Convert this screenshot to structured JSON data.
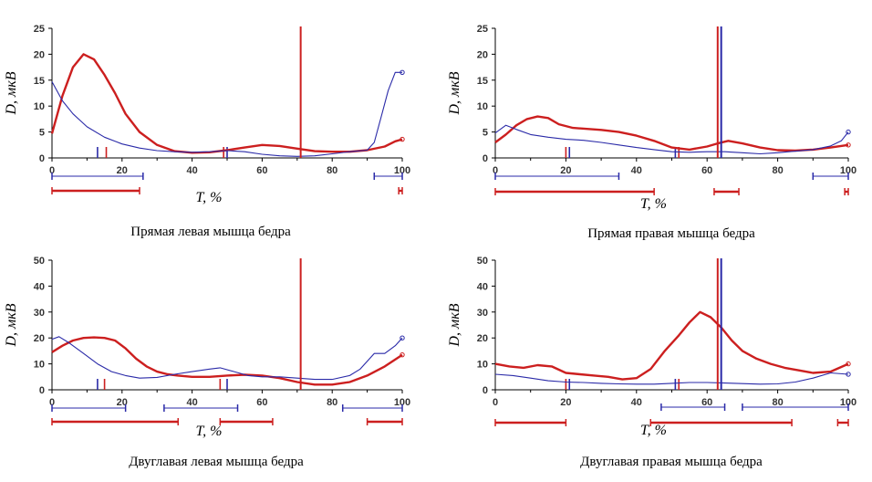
{
  "colors": {
    "series_red": "#cc1f1f",
    "series_blue": "#2a2aa8",
    "axis": "#000000"
  },
  "chart_data": [
    {
      "type": "line",
      "title": "Прямая левая мышца бедра",
      "xlabel": "T, %",
      "ylabel": "D, мкВ",
      "xlim": [
        0,
        100
      ],
      "ylim": [
        0,
        25
      ],
      "xticks": [
        "0",
        "20",
        "40",
        "60",
        "80",
        "100"
      ],
      "yticks": [
        "0",
        "5",
        "10",
        "15",
        "20",
        "25"
      ],
      "series": [
        {
          "color": "red",
          "x": [
            0,
            3,
            6,
            9,
            12,
            15,
            18,
            21,
            25,
            30,
            35,
            40,
            45,
            50,
            55,
            60,
            65,
            70,
            75,
            80,
            85,
            90,
            95,
            98,
            100
          ],
          "y": [
            4.7,
            12,
            17.5,
            20,
            19,
            16,
            12.5,
            8.5,
            5,
            2.5,
            1.3,
            1,
            1.1,
            1.5,
            2,
            2.5,
            2.3,
            1.8,
            1.3,
            1.2,
            1.2,
            1.5,
            2.2,
            3.2,
            3.6
          ]
        },
        {
          "color": "blue",
          "x": [
            0,
            3,
            6,
            10,
            15,
            20,
            25,
            30,
            35,
            40,
            45,
            50,
            55,
            60,
            65,
            70,
            75,
            80,
            85,
            90,
            92,
            94,
            96,
            98,
            100
          ],
          "y": [
            14.7,
            11,
            8.5,
            6,
            4,
            2.7,
            1.9,
            1.4,
            1.2,
            1.1,
            1.2,
            1.4,
            1.2,
            0.7,
            0.4,
            0.3,
            0.4,
            0.8,
            1.2,
            1.5,
            3,
            8,
            13,
            16.5,
            16.5
          ]
        }
      ],
      "vlines": [
        {
          "x": 71,
          "color": "red"
        }
      ],
      "small_markers": [
        {
          "x": 13,
          "color": "blue"
        },
        {
          "x": 15.5,
          "color": "red"
        },
        {
          "x": 49,
          "color": "red"
        },
        {
          "x": 50,
          "color": "blue"
        }
      ],
      "bars_blue": [
        [
          0,
          26
        ],
        [
          92,
          100
        ]
      ],
      "bars_red": [
        [
          0,
          25
        ],
        [
          99,
          100
        ]
      ]
    },
    {
      "type": "line",
      "title": "Прямая правая мышца бедра",
      "xlabel": "T, %",
      "ylabel": "D, мкВ",
      "xlim": [
        0,
        100
      ],
      "ylim": [
        0,
        25
      ],
      "xticks": [
        "0",
        "20",
        "40",
        "60",
        "80",
        "100"
      ],
      "yticks": [
        "0",
        "5",
        "10",
        "15",
        "20",
        "25"
      ],
      "series": [
        {
          "color": "red",
          "x": [
            0,
            3,
            6,
            9,
            12,
            15,
            18,
            22,
            26,
            30,
            35,
            40,
            45,
            50,
            55,
            60,
            63,
            66,
            70,
            75,
            80,
            85,
            90,
            95,
            100
          ],
          "y": [
            3,
            4.5,
            6.3,
            7.5,
            8,
            7.7,
            6.5,
            5.8,
            5.6,
            5.4,
            5,
            4.3,
            3.3,
            2,
            1.6,
            2.2,
            2.8,
            3.3,
            2.8,
            2,
            1.5,
            1.4,
            1.6,
            2,
            2.5
          ]
        },
        {
          "color": "blue",
          "x": [
            0,
            3,
            6,
            10,
            15,
            20,
            25,
            30,
            35,
            40,
            45,
            50,
            55,
            60,
            65,
            70,
            75,
            80,
            85,
            90,
            95,
            98,
            100
          ],
          "y": [
            4.8,
            6.3,
            5.5,
            4.5,
            4,
            3.6,
            3.4,
            3,
            2.5,
            2,
            1.6,
            1.2,
            1.1,
            1.2,
            1.2,
            1,
            0.8,
            1,
            1.3,
            1.6,
            2.3,
            3.3,
            5
          ]
        }
      ],
      "vlines": [
        {
          "x": 63,
          "color": "red"
        },
        {
          "x": 64,
          "color": "blue"
        }
      ],
      "small_markers": [
        {
          "x": 20,
          "color": "red"
        },
        {
          "x": 21,
          "color": "blue"
        },
        {
          "x": 51,
          "color": "blue"
        },
        {
          "x": 52,
          "color": "red"
        }
      ],
      "bars_blue": [
        [
          0,
          35
        ],
        [
          90,
          100
        ]
      ],
      "bars_red": [
        [
          0,
          45
        ],
        [
          62,
          69
        ],
        [
          99,
          100
        ]
      ]
    },
    {
      "type": "line",
      "title": "Двуглавая левая мышца бедра",
      "xlabel": "T, %",
      "ylabel": "D, мкВ",
      "xlim": [
        0,
        100
      ],
      "ylim": [
        0,
        50
      ],
      "xticks": [
        "0",
        "20",
        "40",
        "60",
        "80",
        "100"
      ],
      "yticks": [
        "0",
        "10",
        "20",
        "30",
        "40",
        "50"
      ],
      "series": [
        {
          "color": "red",
          "x": [
            0,
            3,
            6,
            9,
            12,
            15,
            18,
            21,
            24,
            27,
            30,
            33,
            36,
            40,
            45,
            50,
            55,
            60,
            65,
            70,
            75,
            80,
            85,
            90,
            95,
            100
          ],
          "y": [
            14.5,
            17,
            19,
            20,
            20.2,
            20,
            19,
            16,
            12,
            9,
            7,
            6,
            5.5,
            5,
            5,
            5.5,
            5.8,
            5.5,
            4.5,
            3,
            2,
            2,
            3,
            5.5,
            9,
            13.5
          ]
        },
        {
          "color": "blue",
          "x": [
            0,
            2,
            5,
            9,
            13,
            17,
            21,
            25,
            30,
            35,
            40,
            45,
            48,
            52,
            56,
            60,
            65,
            70,
            75,
            80,
            85,
            88,
            92,
            95,
            98,
            100
          ],
          "y": [
            19.5,
            20.5,
            18,
            14,
            10,
            7,
            5.5,
            4.5,
            4.8,
            6,
            7,
            8,
            8.5,
            7,
            5.5,
            5,
            5,
            4.5,
            4,
            4,
            5.5,
            8,
            14,
            14,
            17,
            20
          ]
        }
      ],
      "vlines": [
        {
          "x": 71,
          "color": "red"
        }
      ],
      "small_markers": [
        {
          "x": 13,
          "color": "blue"
        },
        {
          "x": 15,
          "color": "red"
        },
        {
          "x": 48,
          "color": "red"
        },
        {
          "x": 50,
          "color": "blue"
        }
      ],
      "bars_blue": [
        [
          0,
          21
        ],
        [
          32,
          53
        ],
        [
          83,
          100
        ]
      ],
      "bars_red": [
        [
          0,
          36
        ],
        [
          48,
          63
        ],
        [
          90,
          100
        ]
      ]
    },
    {
      "type": "line",
      "title": "Двуглавая правая мышца бедра",
      "xlabel": "T, %",
      "ylabel": "D, мкВ",
      "xlim": [
        0,
        100
      ],
      "ylim": [
        0,
        50
      ],
      "xticks": [
        "0",
        "20",
        "40",
        "60",
        "80",
        "100"
      ],
      "yticks": [
        "0",
        "10",
        "20",
        "30",
        "40",
        "50"
      ],
      "series": [
        {
          "color": "red",
          "x": [
            0,
            4,
            8,
            12,
            16,
            20,
            24,
            28,
            32,
            36,
            40,
            44,
            48,
            52,
            55,
            58,
            61,
            64,
            67,
            70,
            74,
            78,
            82,
            86,
            90,
            95,
            100
          ],
          "y": [
            10,
            9,
            8.5,
            9.5,
            9,
            6.5,
            6,
            5.5,
            5,
            4,
            4.5,
            8,
            15,
            21,
            26,
            30,
            28,
            24,
            19,
            15,
            12,
            10,
            8.5,
            7.5,
            6.5,
            7,
            10
          ]
        },
        {
          "color": "blue",
          "x": [
            0,
            5,
            10,
            15,
            20,
            25,
            30,
            35,
            40,
            45,
            50,
            55,
            60,
            65,
            70,
            75,
            80,
            85,
            90,
            95,
            100
          ],
          "y": [
            6,
            5.5,
            4.5,
            3.5,
            3,
            2.8,
            2.5,
            2.3,
            2.2,
            2.2,
            2.5,
            2.8,
            2.8,
            2.6,
            2.4,
            2.2,
            2.3,
            3,
            4.5,
            6.5,
            6
          ]
        }
      ],
      "vlines": [
        {
          "x": 63,
          "color": "red"
        },
        {
          "x": 64,
          "color": "blue"
        }
      ],
      "small_markers": [
        {
          "x": 20,
          "color": "red"
        },
        {
          "x": 21,
          "color": "blue"
        },
        {
          "x": 51,
          "color": "blue"
        },
        {
          "x": 52,
          "color": "red"
        }
      ],
      "bars_blue": [
        [
          47,
          65
        ],
        [
          70,
          100
        ]
      ],
      "bars_red": [
        [
          0,
          20
        ],
        [
          44,
          84
        ],
        [
          97,
          100
        ]
      ]
    }
  ]
}
